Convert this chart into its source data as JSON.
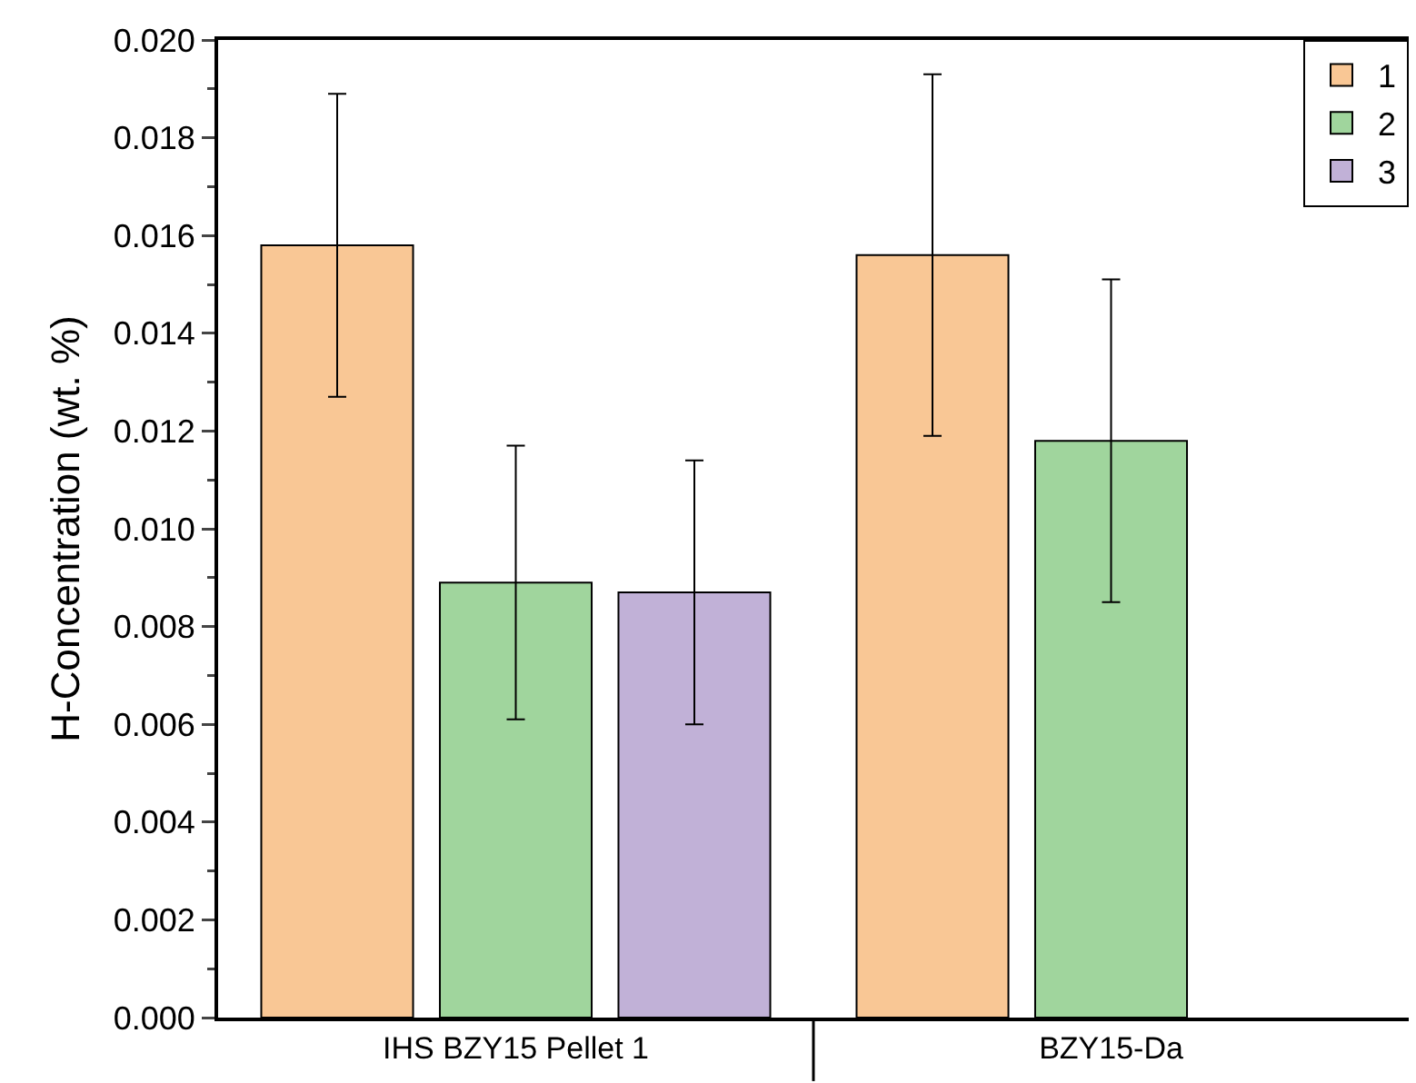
{
  "chart_data": {
    "type": "bar",
    "ylabel": "H-Concentration (wt. %)",
    "categories": [
      "IHS BZY15 Pellet 1",
      "BZY15-Da"
    ],
    "series": [
      {
        "name": "1",
        "color": "#f9c795",
        "values": [
          0.0158,
          0.0156
        ],
        "errors": [
          0.0031,
          0.0037
        ]
      },
      {
        "name": "2",
        "color": "#a0d59d",
        "values": [
          0.0089,
          0.0118
        ],
        "errors": [
          0.0028,
          0.0033
        ]
      },
      {
        "name": "3",
        "color": "#c1b1d7",
        "values": [
          0.0087,
          null
        ],
        "errors": [
          0.0027,
          null
        ]
      }
    ],
    "ylim": [
      0,
      0.02
    ],
    "yticks": [
      {
        "value": 0,
        "label": "0.000"
      },
      {
        "value": 0.002,
        "label": "0.002"
      },
      {
        "value": 0.004,
        "label": "0.004"
      },
      {
        "value": 0.006,
        "label": "0.006"
      },
      {
        "value": 0.008,
        "label": "0.008"
      },
      {
        "value": 0.01,
        "label": "0.010"
      },
      {
        "value": 0.012,
        "label": "0.012"
      },
      {
        "value": 0.014,
        "label": "0.014"
      },
      {
        "value": 0.016,
        "label": "0.016"
      },
      {
        "value": 0.018,
        "label": "0.018"
      },
      {
        "value": 0.02,
        "label": "0.020"
      }
    ],
    "grid": false,
    "legend": "top right"
  }
}
